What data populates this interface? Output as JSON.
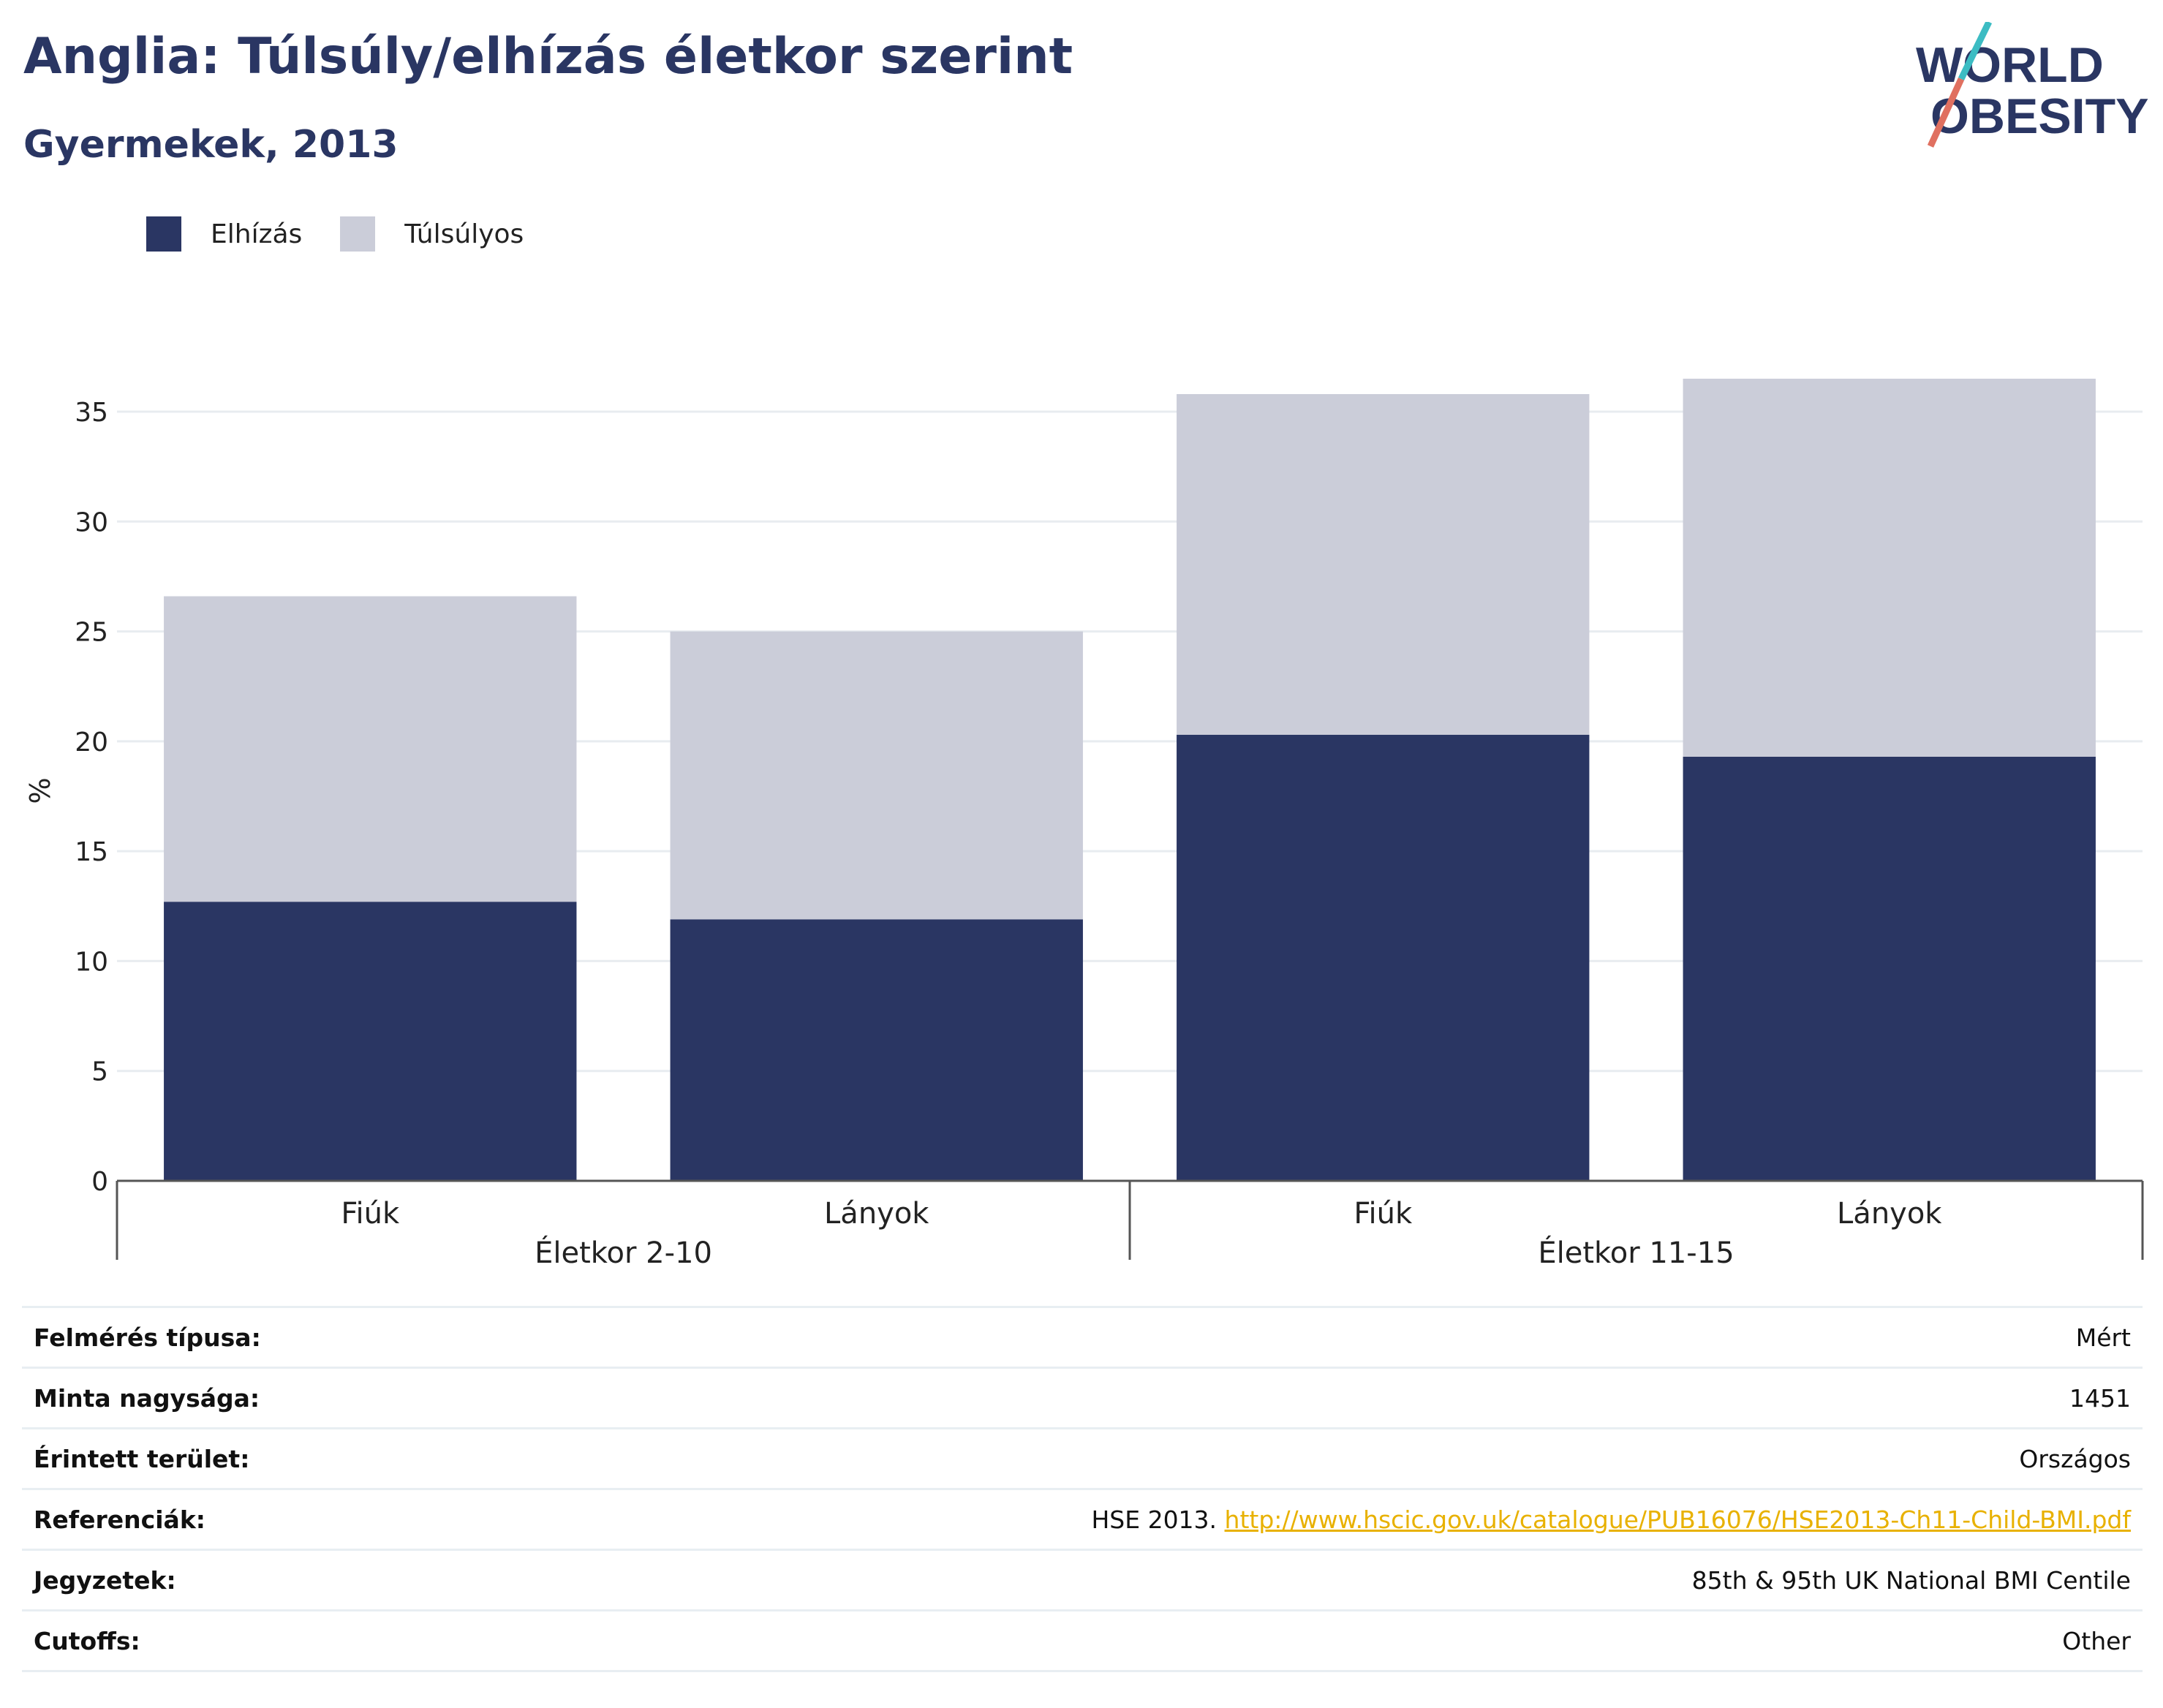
{
  "title": "Anglia: Túlsúly/elhízás életkor szerint",
  "subtitle": "Gyermekek, 2013",
  "logo": {
    "line1": "WORLD",
    "line2": "OBESITY",
    "accent1": "#3cbcc3",
    "accent2": "#e07060"
  },
  "colors": {
    "obesity": "#2a3663",
    "overweight": "#cbcdd9",
    "text_dark": "#2a3663"
  },
  "chart_data": {
    "type": "bar",
    "stacked": true,
    "categories": [
      "Fiúk",
      "Lányok",
      "Fiúk",
      "Lányok"
    ],
    "groups": [
      {
        "label": "Életkor 2-10",
        "categories": [
          0,
          1
        ]
      },
      {
        "label": "Életkor 11-15",
        "categories": [
          2,
          3
        ]
      }
    ],
    "series": [
      {
        "name": "Elhízás",
        "values": [
          12.7,
          11.9,
          20.3,
          19.3
        ]
      },
      {
        "name": "Túlsúlyos",
        "values": [
          13.9,
          13.1,
          15.5,
          17.2
        ]
      }
    ],
    "ylabel": "%",
    "ylim": [
      0,
      35.5
    ],
    "yticks": [
      0,
      5,
      10,
      15,
      20,
      25,
      30,
      35
    ],
    "grid": true,
    "legend_position": "top-left"
  },
  "info": [
    {
      "key": "Felmérés típusa:",
      "value": "Mért"
    },
    {
      "key": "Minta nagysága:",
      "value": "1451"
    },
    {
      "key": "Érintett terület:",
      "value": "Országos"
    },
    {
      "key": "Referenciák:",
      "value": "HSE 2013.",
      "link": "http://www.hscic.gov.uk/catalogue/PUB16076/HSE2013-Ch11-Child-BMI.pdf"
    },
    {
      "key": "Jegyzetek:",
      "value": "85th & 95th UK National BMI Centile"
    },
    {
      "key": "Cutoffs:",
      "value": "Other"
    }
  ]
}
